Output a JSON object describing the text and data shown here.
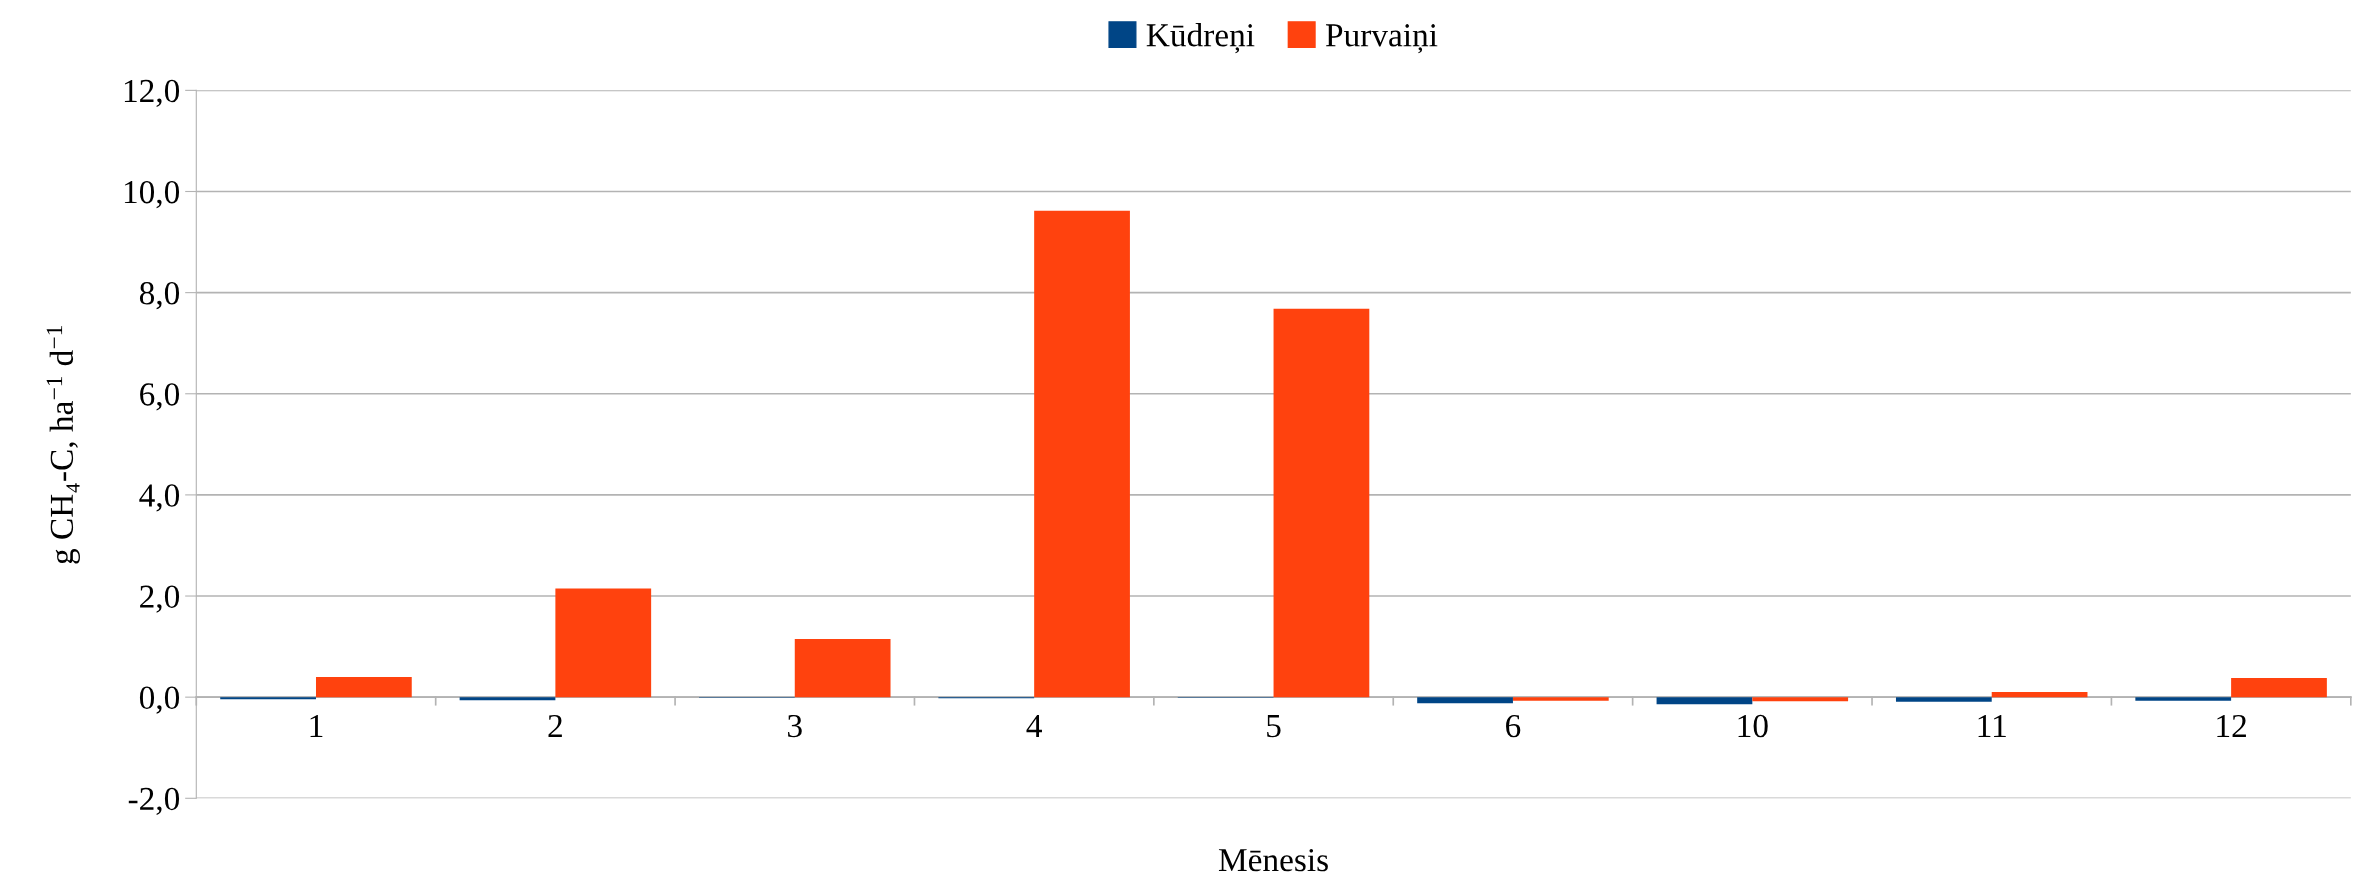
{
  "chart_data": {
    "type": "bar",
    "xlabel": "Mēnesis",
    "ylabel": "g CH₄-C, ha$^{−1}$ d$^{−1}$",
    "categories": [
      "1",
      "2",
      "3",
      "4",
      "5",
      "6",
      "10",
      "11",
      "12"
    ],
    "series": [
      {
        "name": "Kūdreņi",
        "color": "#004586",
        "values": [
          -0.04,
          -0.06,
          -0.01,
          -0.02,
          -0.01,
          -0.12,
          -0.14,
          -0.09,
          -0.07
        ]
      },
      {
        "name": "Purvaiņi",
        "color": "#ff420e",
        "values": [
          0.4,
          2.15,
          1.15,
          9.62,
          7.68,
          -0.07,
          -0.08,
          0.1,
          0.38
        ]
      }
    ],
    "ylim": [
      -2,
      12
    ],
    "yticks": [
      {
        "value": -2,
        "label": "-2,0"
      },
      {
        "value": 0,
        "label": "0,0"
      },
      {
        "value": 2,
        "label": "2,0"
      },
      {
        "value": 4,
        "label": "4,0"
      },
      {
        "value": 6,
        "label": "6,0"
      },
      {
        "value": 8,
        "label": "8,0"
      },
      {
        "value": 10,
        "label": "10,0"
      },
      {
        "value": 12,
        "label": "12,0"
      }
    ],
    "grid": "y",
    "legend": "top"
  }
}
